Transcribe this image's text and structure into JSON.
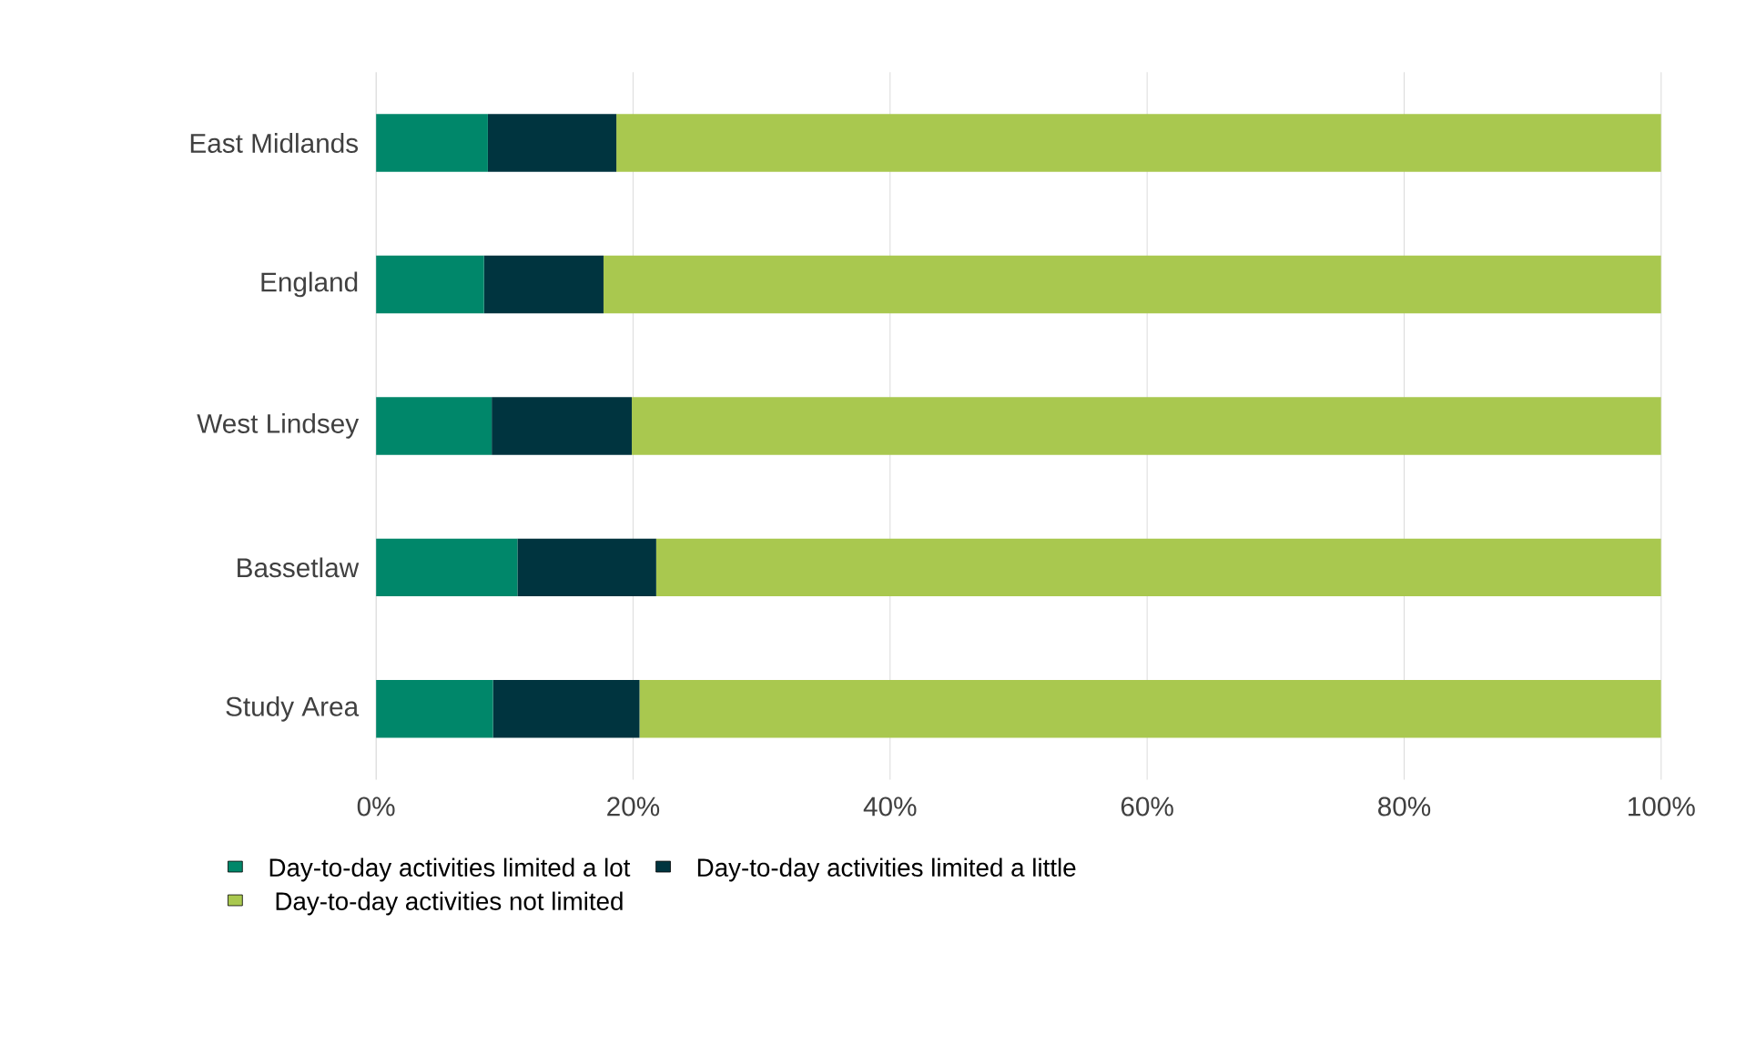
{
  "chart_data": {
    "type": "bar",
    "orientation": "horizontal",
    "stacked": true,
    "categories": [
      "East Midlands",
      "England",
      "West Lindsey",
      "Bassetlaw",
      "Study Area"
    ],
    "series": [
      {
        "name": "Day-to-day activities limited a lot",
        "color": "#00876a",
        "values": [
          8.7,
          8.4,
          9.0,
          11.0,
          9.1
        ]
      },
      {
        "name": "Day-to-day activities limited a little",
        "color": "#00343f",
        "values": [
          10.0,
          9.3,
          10.9,
          10.8,
          11.4
        ]
      },
      {
        "name": "Day-to-day activities not limited",
        "color": "#a9c84f",
        "values": [
          81.3,
          82.3,
          80.1,
          78.2,
          79.5
        ]
      }
    ],
    "xlim": [
      0,
      100
    ],
    "xticks": [
      {
        "value": 0,
        "label": "0%"
      },
      {
        "value": 20,
        "label": "20%"
      },
      {
        "value": 40,
        "label": "40%"
      },
      {
        "value": 60,
        "label": "60%"
      },
      {
        "value": 80,
        "label": "80%"
      },
      {
        "value": 100,
        "label": "100%"
      }
    ],
    "grid": "x",
    "legend": "bottom"
  }
}
